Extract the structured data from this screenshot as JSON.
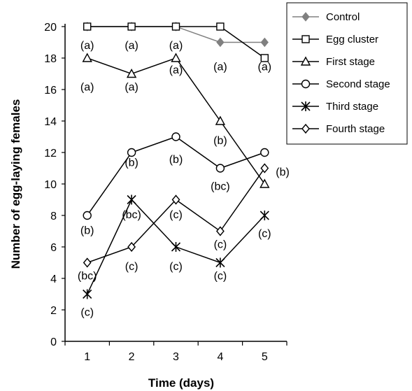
{
  "chart_data": {
    "type": "line",
    "xlabel": "Time (days)",
    "ylabel": "Number of egg-laying females",
    "x": [
      1,
      2,
      3,
      4,
      5
    ],
    "xlim": [
      0.5,
      5.5
    ],
    "ylim": [
      0,
      20
    ],
    "yticks": [
      0,
      2,
      4,
      6,
      8,
      10,
      12,
      14,
      16,
      18,
      20
    ],
    "grid": false,
    "legend_position": "top-right",
    "series": [
      {
        "name": "Control",
        "marker": "filled-diamond",
        "color": "#808080",
        "values": [
          20,
          20,
          20,
          19,
          19
        ]
      },
      {
        "name": "Egg cluster",
        "marker": "square",
        "color": "#000000",
        "values": [
          20,
          20,
          20,
          20,
          18
        ]
      },
      {
        "name": "First stage",
        "marker": "triangle",
        "color": "#000000",
        "values": [
          18,
          17,
          18,
          14,
          10
        ]
      },
      {
        "name": "Second stage",
        "marker": "circle",
        "color": "#000000",
        "values": [
          8,
          12,
          13,
          11,
          12
        ]
      },
      {
        "name": "Third stage",
        "marker": "asterisk",
        "color": "#000000",
        "values": [
          3,
          9,
          6,
          5,
          8
        ]
      },
      {
        "name": "Fourth stage",
        "marker": "diamond",
        "color": "#000000",
        "values": [
          5,
          6,
          9,
          7,
          11
        ]
      }
    ],
    "annotations": [
      {
        "text": "(a)",
        "x": 1,
        "y": 20,
        "pos": "below"
      },
      {
        "text": "(a)",
        "x": 2,
        "y": 20,
        "pos": "below"
      },
      {
        "text": "(a)",
        "x": 3,
        "y": 20,
        "pos": "below"
      },
      {
        "text": "(a)",
        "x": 4,
        "y": 17.5,
        "pos": "center"
      },
      {
        "text": "(a)",
        "x": 5,
        "y": 17.5,
        "pos": "center"
      },
      {
        "text": "(a)",
        "x": 1,
        "y": 16.2,
        "pos": "center"
      },
      {
        "text": "(a)",
        "x": 2,
        "y": 16.2,
        "pos": "center"
      },
      {
        "text": "(a)",
        "x": 3,
        "y": 17.3,
        "pos": "center"
      },
      {
        "text": "(b)",
        "x": 4,
        "y": 12.8,
        "pos": "center"
      },
      {
        "text": "(b)",
        "x": 5,
        "y": 10.8,
        "pos": "right"
      },
      {
        "text": "(b)",
        "x": 1,
        "y": 7.1,
        "pos": "center"
      },
      {
        "text": "(b)",
        "x": 2,
        "y": 11.4,
        "pos": "center"
      },
      {
        "text": "(b)",
        "x": 3,
        "y": 11.6,
        "pos": "center"
      },
      {
        "text": "(bc)",
        "x": 4,
        "y": 9.9,
        "pos": "center"
      },
      {
        "text": "(bc)",
        "x": 2,
        "y": 8.1,
        "pos": "center"
      },
      {
        "text": "(c)",
        "x": 3,
        "y": 8.1,
        "pos": "center"
      },
      {
        "text": "(c)",
        "x": 5,
        "y": 6.9,
        "pos": "center"
      },
      {
        "text": "(c)",
        "x": 4,
        "y": 6.2,
        "pos": "center"
      },
      {
        "text": "(c)",
        "x": 2,
        "y": 4.8,
        "pos": "center"
      },
      {
        "text": "(c)",
        "x": 3,
        "y": 4.8,
        "pos": "center"
      },
      {
        "text": "(c)",
        "x": 4,
        "y": 4.2,
        "pos": "center"
      },
      {
        "text": "(bc)",
        "x": 1,
        "y": 4.2,
        "pos": "center"
      },
      {
        "text": "(c)",
        "x": 1,
        "y": 1.9,
        "pos": "center"
      }
    ]
  }
}
